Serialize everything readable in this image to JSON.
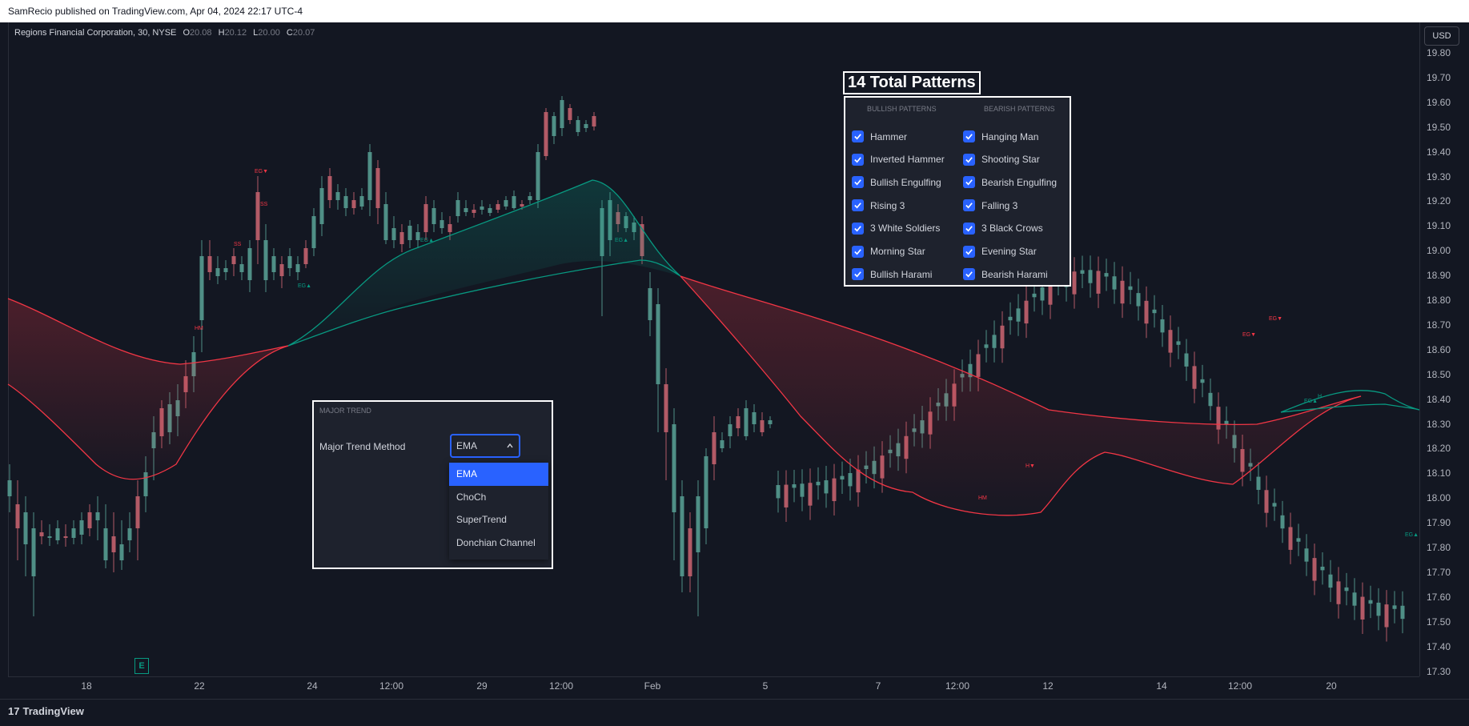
{
  "header": {
    "published": "SamRecio published on TradingView.com, Apr 04, 2024 22:17 UTC-4"
  },
  "symbol": {
    "name": "Regions Financial Corporation, 30, NYSE",
    "o_label": "O",
    "o": "20.08",
    "h_label": "H",
    "h": "20.12",
    "l_label": "L",
    "l": "20.00",
    "c_label": "C",
    "c": "20.07"
  },
  "currency": "USD",
  "price_labels": [
    "19.80",
    "19.70",
    "19.60",
    "19.50",
    "19.40",
    "19.30",
    "19.20",
    "19.10",
    "19.00",
    "18.90",
    "18.80",
    "18.70",
    "18.60",
    "18.50",
    "18.40",
    "18.30",
    "18.20",
    "18.10",
    "18.00",
    "17.90",
    "17.80",
    "17.70",
    "17.60",
    "17.50",
    "17.40",
    "17.30"
  ],
  "time_labels": [
    "18",
    "22",
    "24",
    "12:00",
    "29",
    "12:00",
    "Feb",
    "5",
    "7",
    "12:00",
    "12",
    "14",
    "12:00",
    "20"
  ],
  "patterns": {
    "title": "14 Total Patterns",
    "bullish_header": "BULLISH PATTERNS",
    "bearish_header": "BEARISH PATTERNS",
    "bullish": [
      "Hammer",
      "Inverted Hammer",
      "Bullish Engulfing",
      "Rising 3",
      "3 White Soldiers",
      "Morning Star",
      "Bullish Harami"
    ],
    "bearish": [
      "Hanging Man",
      "Shooting Star",
      "Bearish Engulfing",
      "Falling 3",
      "3 Black Crows",
      "Evening Star",
      "Bearish Harami"
    ]
  },
  "trend": {
    "header": "MAJOR TREND",
    "label": "Major Trend Method",
    "selected": "EMA",
    "options": [
      "EMA",
      "ChoCh",
      "SuperTrend",
      "Donchian Channel"
    ]
  },
  "markers": [
    {
      "text": "EG▼",
      "color": "#f23645"
    },
    {
      "text": "SS",
      "color": "#f23645"
    },
    {
      "text": "SS",
      "color": "#f23645"
    },
    {
      "text": "EG▲",
      "color": "#089981"
    },
    {
      "text": "HM",
      "color": "#f23645"
    },
    {
      "text": "EG▲",
      "color": "#089981"
    },
    {
      "text": "EG▲",
      "color": "#089981"
    },
    {
      "text": "H▼",
      "color": "#f23645"
    },
    {
      "text": "HM",
      "color": "#f23645"
    },
    {
      "text": "EG▼",
      "color": "#f23645"
    },
    {
      "text": "EG▼",
      "color": "#f23645"
    },
    {
      "text": "EG▲",
      "color": "#089981"
    },
    {
      "text": "H",
      "color": "#089981"
    },
    {
      "text": "EG▲",
      "color": "#089981"
    }
  ],
  "earnings_badge": "E",
  "brand": {
    "logo": "17",
    "name": "TradingView"
  },
  "colors": {
    "up": "#4f8f86",
    "down": "#b25a66",
    "bull_line": "#089981",
    "bear_line": "#f23645",
    "accent": "#2962ff"
  }
}
